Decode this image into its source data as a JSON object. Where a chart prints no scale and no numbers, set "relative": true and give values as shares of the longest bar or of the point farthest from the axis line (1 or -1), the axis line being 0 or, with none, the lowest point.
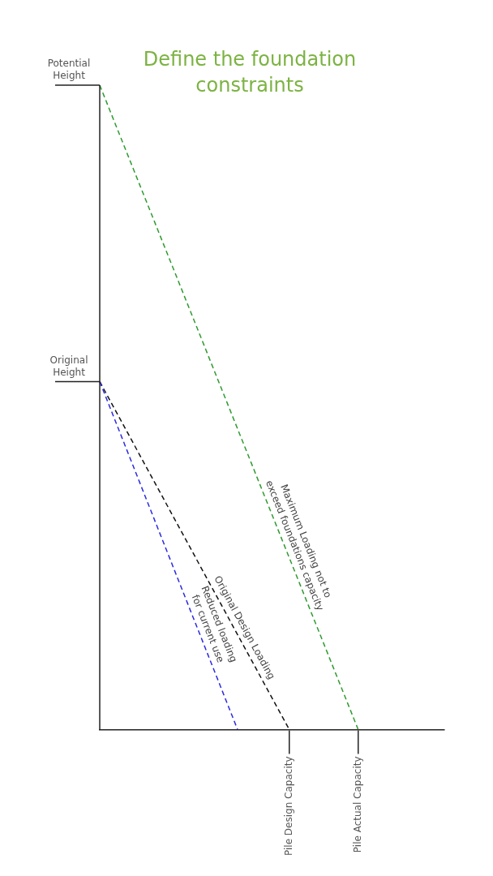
{
  "chart_data": {
    "type": "line",
    "title": "Define the foundation constraints",
    "relative": true,
    "categories": [
      null,
      null,
      null,
      null,
      null,
      null,
      null,
      null,
      null,
      null,
      null,
      "Pile Design Capacity",
      null,
      null,
      null,
      "Pile Actual Capacity",
      null,
      null,
      null,
      null,
      null
    ],
    "annotations": [
      "Potential Height",
      "Original Height"
    ],
    "legend": false,
    "marker": "none",
    "line_style": "dashed",
    "series": [
      {
        "name": "Maximum Loading not to exceed foundations capacity",
        "color": "#2e9a2e",
        "values": [
          1,
          null,
          null,
          null,
          null,
          null,
          null,
          null,
          null,
          null,
          null,
          null,
          null,
          null,
          null,
          0,
          null,
          null,
          null,
          null,
          null
        ]
      },
      {
        "name": "Original Design Loading",
        "color": "#111111",
        "values": [
          0.54,
          null,
          null,
          null,
          null,
          null,
          null,
          null,
          null,
          null,
          null,
          0,
          null,
          null,
          null,
          null,
          null,
          null,
          null,
          null,
          null
        ]
      },
      {
        "name": "Reduced loading for current use",
        "color": "#2a2ae0",
        "values": [
          0.54,
          null,
          null,
          null,
          null,
          null,
          null,
          null,
          0,
          null,
          null,
          null,
          null,
          null,
          null,
          null,
          null,
          null,
          null,
          null,
          null
        ]
      }
    ]
  }
}
